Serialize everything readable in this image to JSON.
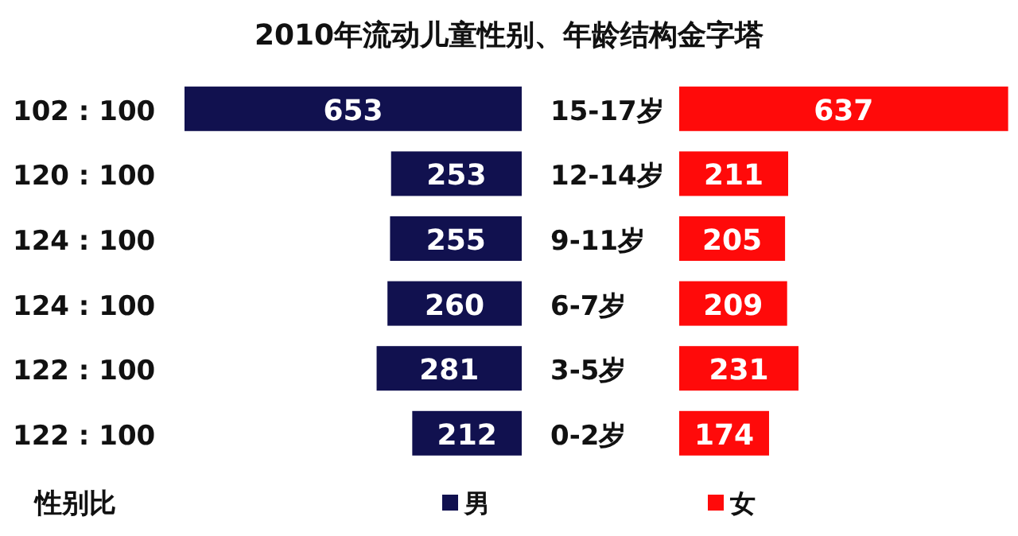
{
  "chart_data": [
    {
      "type": "bar",
      "orientation": "horizontal",
      "title": "2010年流动儿童性别、年龄结构金字塔",
      "categories": [
        "102 : 100",
        "120 : 100",
        "124 : 100",
        "124 : 100",
        "122 : 100",
        "122 : 100"
      ],
      "series": [
        {
          "name": "男",
          "color": "#11114f",
          "values": [
            653,
            253,
            255,
            260,
            281,
            212
          ]
        }
      ],
      "tick_labels": "y",
      "data_labels": true,
      "legend": "bottom",
      "annotations": [
        "性别比"
      ]
    },
    {
      "type": "bar",
      "orientation": "horizontal",
      "categories": [
        "15-17岁",
        "12-14岁",
        "9-11岁",
        "6-7岁",
        "3-5岁",
        "0-2岁"
      ],
      "series": [
        {
          "name": "女",
          "color": "#ff0a0a",
          "values": [
            637,
            211,
            205,
            209,
            231,
            174
          ]
        }
      ],
      "tick_labels": "y",
      "data_labels": true,
      "legend": "bottom"
    }
  ]
}
